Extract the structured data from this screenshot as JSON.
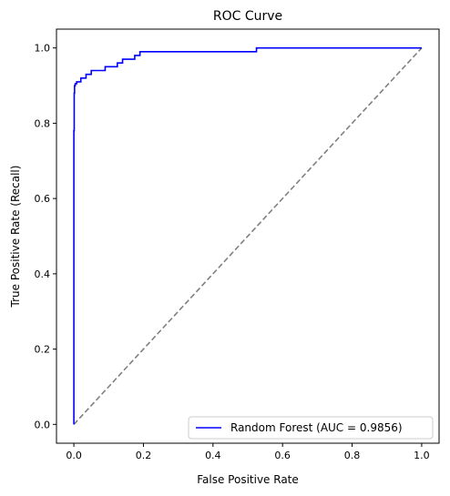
{
  "chart_data": {
    "type": "line",
    "title": "ROC Curve",
    "xlabel": "False Positive Rate",
    "ylabel": "True Positive Rate (Recall)",
    "xlim": [
      -0.05,
      1.05
    ],
    "ylim": [
      -0.05,
      1.05
    ],
    "xticks": [
      "0.0",
      "0.2",
      "0.4",
      "0.6",
      "0.8",
      "1.0"
    ],
    "yticks": [
      "0.0",
      "0.2",
      "0.4",
      "0.6",
      "0.8",
      "1.0"
    ],
    "grid": false,
    "legend_position": "lower-right",
    "series": [
      {
        "name": "Random Forest (AUC = 0.9856)",
        "color": "#0000ff",
        "style": "solid",
        "x": [
          0.0,
          0.0,
          0.001,
          0.001,
          0.002,
          0.002,
          0.004,
          0.004,
          0.008,
          0.008,
          0.02,
          0.02,
          0.035,
          0.035,
          0.05,
          0.05,
          0.09,
          0.09,
          0.125,
          0.125,
          0.14,
          0.14,
          0.175,
          0.175,
          0.19,
          0.19,
          0.525,
          0.525,
          1.0
        ],
        "y": [
          0.0,
          0.78,
          0.78,
          0.88,
          0.88,
          0.9,
          0.9,
          0.905,
          0.905,
          0.91,
          0.91,
          0.92,
          0.92,
          0.93,
          0.93,
          0.94,
          0.94,
          0.95,
          0.95,
          0.96,
          0.96,
          0.97,
          0.97,
          0.98,
          0.98,
          0.99,
          0.99,
          1.0,
          1.0
        ]
      },
      {
        "name": "",
        "color": "#808080",
        "style": "dashed",
        "x": [
          0,
          1
        ],
        "y": [
          0,
          1
        ]
      }
    ]
  }
}
